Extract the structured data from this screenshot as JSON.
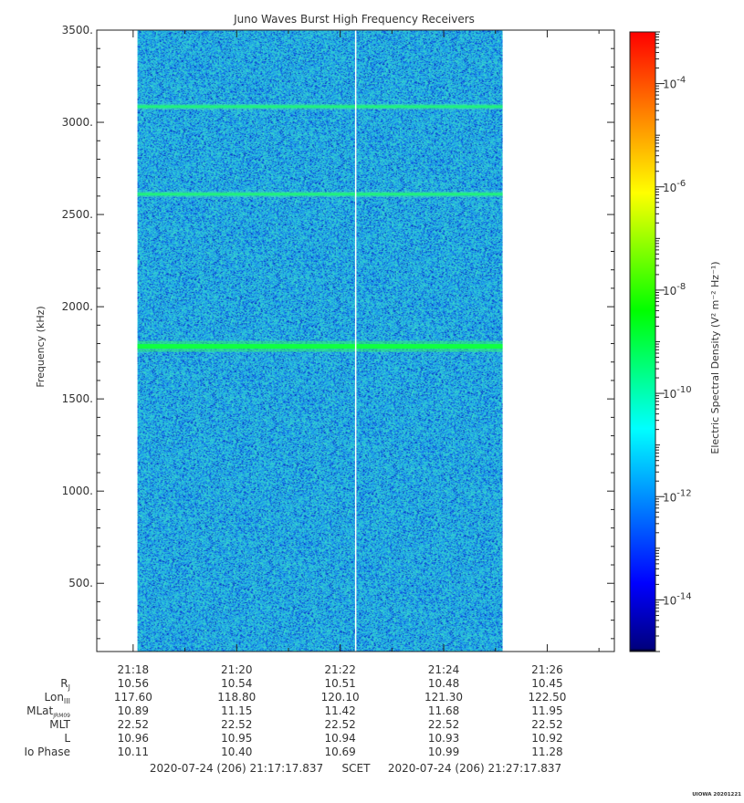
{
  "chart_data": {
    "type": "heatmap",
    "title": "Juno Waves Burst High Frequency Receivers",
    "ylabel": "Frequency (kHz)",
    "ylim": [
      130,
      3500
    ],
    "yticks": [
      "3500.",
      "3000.",
      "2500.",
      "2000.",
      "1500.",
      "1000.",
      "500."
    ],
    "ytick_values": [
      3500,
      3000,
      2500,
      2000,
      1500,
      1000,
      500
    ],
    "x_tick_labels": [
      "21:18",
      "21:20",
      "21:22",
      "21:24",
      "21:26"
    ],
    "xlim": [
      "21:17:17.837",
      "21:27:17.837"
    ],
    "data_time_range": [
      "21:18:05",
      "21:25:08"
    ],
    "gap_line_time": "21:22:18",
    "colorbar": {
      "label": "Electric Spectral Density (V² m⁻² Hz⁻¹)",
      "scale": "log",
      "range": [
        1e-15,
        0.001
      ],
      "tick_labels": [
        "10-4",
        "10-6",
        "10-8",
        "10-10",
        "10-12",
        "10-14"
      ],
      "tick_exponents": [
        -4,
        -6,
        -8,
        -10,
        -12,
        -14
      ],
      "colormap": [
        "#000080",
        "#0000ff",
        "#00ffff",
        "#00ff00",
        "#ffff00",
        "#ff8000",
        "#ff0000"
      ]
    },
    "background_level": "~1e-12",
    "emission_lines_khz": [
      {
        "freq": 3085,
        "level": "~1e-11"
      },
      {
        "freq": 2610,
        "level": "~1e-11"
      },
      {
        "freq": 1785,
        "level": "~1e-10"
      }
    ]
  },
  "ephemeris": {
    "rows": [
      {
        "label": "R",
        "sub": "J",
        "values": [
          "10.56",
          "10.54",
          "10.51",
          "10.48",
          "10.45"
        ]
      },
      {
        "label": "Lon",
        "sub": "III",
        "values": [
          "117.60",
          "118.80",
          "120.10",
          "121.30",
          "122.50"
        ]
      },
      {
        "label": "MLat",
        "sub": "JRM09",
        "values": [
          "10.89",
          "11.15",
          "11.42",
          "11.68",
          "11.95"
        ]
      },
      {
        "label": "MLT",
        "sub": "",
        "values": [
          "22.52",
          "22.52",
          "22.52",
          "22.52",
          "22.52"
        ]
      },
      {
        "label": "L",
        "sub": "",
        "values": [
          "10.96",
          "10.95",
          "10.94",
          "10.93",
          "10.92"
        ]
      },
      {
        "label": "Io Phase",
        "sub": "",
        "values": [
          "10.11",
          "10.40",
          "10.69",
          "10.99",
          "11.28"
        ]
      }
    ]
  },
  "footer": {
    "start": "2020-07-24 (206) 21:17:17.837",
    "scet": "SCET",
    "end": "2020-07-24 (206) 21:27:17.837"
  },
  "watermark": "UIOWA 20201221"
}
